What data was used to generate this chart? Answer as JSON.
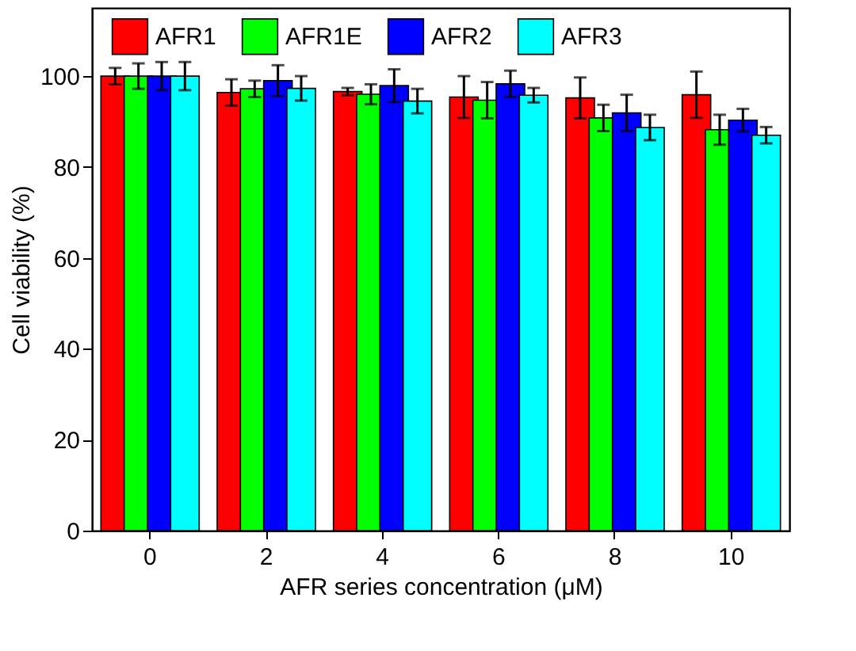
{
  "chart_data": {
    "type": "bar",
    "xlabel": "AFR series concentration (μM)",
    "ylabel": "Cell viability (%)",
    "categories": [
      "0",
      "2",
      "4",
      "6",
      "8",
      "10"
    ],
    "series": [
      {
        "name": "AFR1",
        "color": "#ff0000",
        "values": [
          100,
          96.4,
          96.6,
          95.4,
          95.2,
          95.9
        ],
        "errors": [
          1.8,
          2.9,
          0.8,
          4.6,
          4.5,
          5.1
        ]
      },
      {
        "name": "AFR1E",
        "color": "#00ff00",
        "values": [
          100,
          97.2,
          96.0,
          94.7,
          90.8,
          88.2
        ],
        "errors": [
          2.8,
          1.8,
          2.2,
          4.0,
          2.9,
          3.3
        ]
      },
      {
        "name": "AFR2",
        "color": "#0000ff",
        "values": [
          100,
          99.0,
          97.9,
          98.3,
          91.9,
          90.3
        ],
        "errors": [
          3.1,
          3.4,
          3.6,
          2.9,
          4.0,
          2.5
        ]
      },
      {
        "name": "AFR3",
        "color": "#00ffff",
        "values": [
          100,
          97.3,
          94.5,
          95.8,
          88.7,
          87.0
        ],
        "errors": [
          3.1,
          2.7,
          2.7,
          1.6,
          2.8,
          1.8
        ]
      }
    ],
    "ylim": [
      0,
      115
    ],
    "yticks": [
      0,
      20,
      40,
      60,
      80,
      100
    ],
    "grid": false,
    "legend": "top"
  }
}
